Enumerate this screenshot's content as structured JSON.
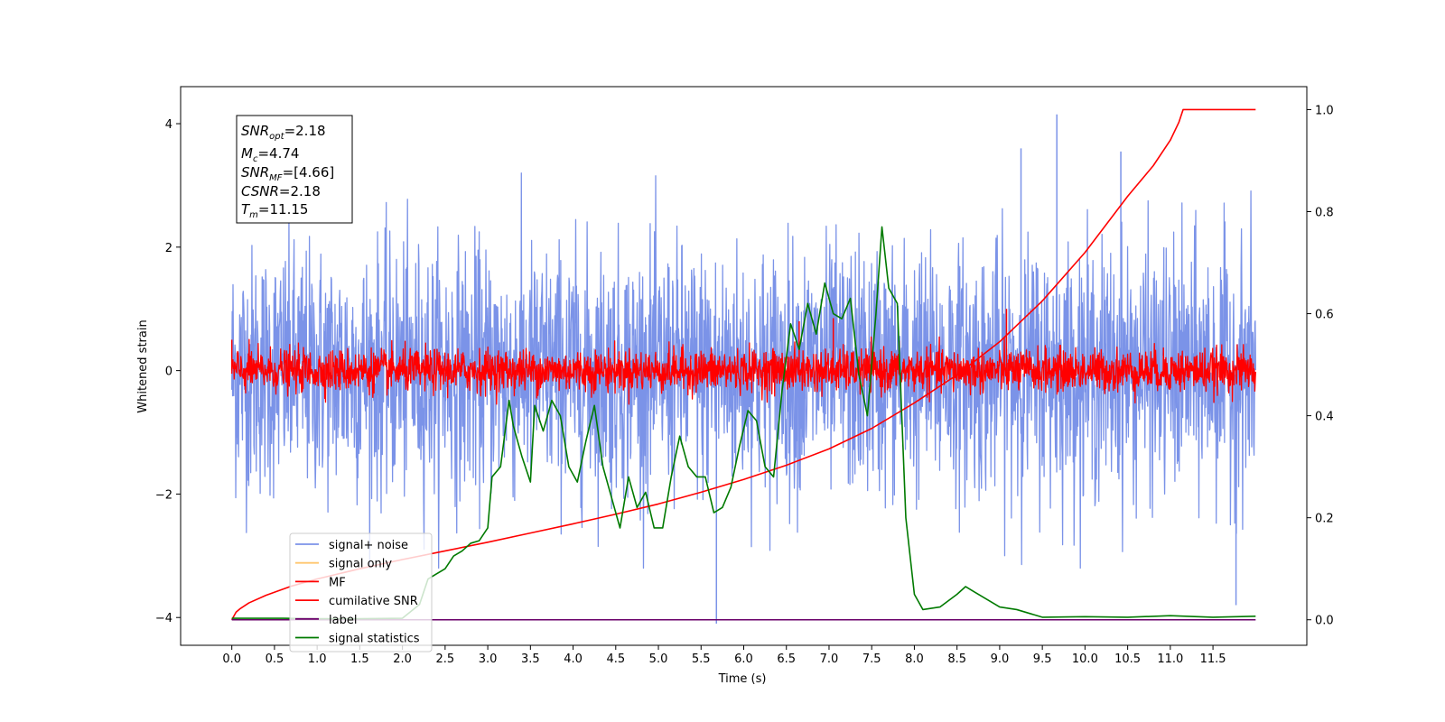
{
  "chart_data": {
    "type": "line",
    "xlabel": "Time (s)",
    "ylabel": "Whitened strain",
    "xlim": [
      -0.6,
      12.6
    ],
    "ylim_left": [
      -4.45,
      4.6
    ],
    "ylim_right": [
      -0.05,
      1.045
    ],
    "x_ticks": [
      "0.0",
      "0.5",
      "1.0",
      "1.5",
      "2.0",
      "2.5",
      "3.0",
      "3.5",
      "4.0",
      "4.5",
      "5.0",
      "5.5",
      "6.0",
      "6.5",
      "7.0",
      "7.5",
      "8.0",
      "8.5",
      "9.0",
      "9.5",
      "10.0",
      "10.5",
      "11.0",
      "11.5"
    ],
    "y_ticks_left": [
      "4",
      "2",
      "0",
      "−2",
      "−4"
    ],
    "y_ticks_right": [
      "1.0",
      "0.8",
      "0.6",
      "0.4",
      "0.2",
      "0.0"
    ],
    "annotation": {
      "snr_opt": "=2.18",
      "mc": "=4.74",
      "snr_mf": "=[4.66]",
      "csnr": "=2.18",
      "tm": "=11.15"
    },
    "legend": {
      "location": "lower-left",
      "entries": [
        {
          "label": "signal+ noise",
          "color": "#7b93e8"
        },
        {
          "label": "signal only",
          "color": "#ffc66e"
        },
        {
          "label": "MF",
          "color": "#ff0000"
        },
        {
          "label": "cumilative SNR",
          "color": "#ff0000"
        },
        {
          "label": "label",
          "color": "#6a006a"
        },
        {
          "label": "signal statistics",
          "color": "#007a00"
        }
      ]
    },
    "series": [
      {
        "name": "signal+ noise",
        "axis": "left",
        "color": "#7b93e8",
        "x_range": [
          0.0,
          12.0
        ],
        "description": "whitened noise, roughly ±2.5 amplitude with spikes to +4.2 / -4.1",
        "amplitude": 1.0,
        "peaks": [
          [
            9.67,
            4.15
          ],
          [
            5.68,
            -4.1
          ],
          [
            11.77,
            -3.8
          ],
          [
            9.25,
            3.6
          ],
          [
            10.42,
            3.55
          ]
        ]
      },
      {
        "name": "MF",
        "axis": "left",
        "color": "#ff0000",
        "x_range": [
          0.0,
          12.0
        ],
        "description": "matched filter output, roughly ±0.35 band with peaks up to ~0.9",
        "amplitude": 0.17,
        "peaks": [
          [
            0.0,
            0.5
          ],
          [
            9.08,
            1.0
          ],
          [
            6.65,
            0.8
          ],
          [
            7.05,
            0.85
          ]
        ]
      },
      {
        "name": "cumilative SNR",
        "axis": "right",
        "color": "#ff0000",
        "x": [
          0.0,
          0.05,
          0.1,
          0.2,
          0.4,
          0.7,
          1.0,
          1.5,
          2.0,
          2.5,
          3.0,
          3.5,
          4.0,
          4.5,
          5.0,
          5.5,
          6.0,
          6.5,
          7.0,
          7.5,
          8.0,
          8.5,
          9.0,
          9.5,
          10.0,
          10.5,
          10.8,
          11.0,
          11.1,
          11.15,
          12.0
        ],
        "values": [
          0.0,
          0.015,
          0.022,
          0.033,
          0.048,
          0.066,
          0.08,
          0.1,
          0.118,
          0.135,
          0.152,
          0.17,
          0.188,
          0.207,
          0.227,
          0.25,
          0.275,
          0.303,
          0.335,
          0.375,
          0.425,
          0.48,
          0.545,
          0.625,
          0.72,
          0.83,
          0.89,
          0.94,
          0.975,
          1.0,
          1.0
        ]
      },
      {
        "name": "label",
        "axis": "right",
        "color": "#6a006a",
        "x": [
          0.0,
          12.0
        ],
        "values": [
          0.0,
          0.0
        ]
      },
      {
        "name": "signal statistics",
        "axis": "right",
        "color": "#007a00",
        "x": [
          0.0,
          0.3,
          0.6,
          1.0,
          1.5,
          2.0,
          2.2,
          2.3,
          2.4,
          2.5,
          2.6,
          2.7,
          2.8,
          2.9,
          3.0,
          3.05,
          3.15,
          3.25,
          3.3,
          3.4,
          3.5,
          3.55,
          3.65,
          3.75,
          3.85,
          3.95,
          4.05,
          4.15,
          4.25,
          4.35,
          4.45,
          4.55,
          4.65,
          4.75,
          4.85,
          4.95,
          5.05,
          5.15,
          5.25,
          5.35,
          5.45,
          5.55,
          5.65,
          5.75,
          5.85,
          5.95,
          6.05,
          6.15,
          6.25,
          6.35,
          6.45,
          6.55,
          6.65,
          6.75,
          6.85,
          6.95,
          7.05,
          7.15,
          7.25,
          7.35,
          7.45,
          7.55,
          7.62,
          7.7,
          7.8,
          7.9,
          8.0,
          8.1,
          8.3,
          8.5,
          8.6,
          8.7,
          8.8,
          9.0,
          9.2,
          9.5,
          10.0,
          10.5,
          11.0,
          11.5,
          12.0
        ],
        "values": [
          0.003,
          0.003,
          0.003,
          0.002,
          0.002,
          0.003,
          0.03,
          0.08,
          0.09,
          0.1,
          0.125,
          0.135,
          0.15,
          0.155,
          0.18,
          0.28,
          0.3,
          0.43,
          0.38,
          0.32,
          0.27,
          0.42,
          0.37,
          0.43,
          0.4,
          0.3,
          0.27,
          0.35,
          0.42,
          0.3,
          0.24,
          0.18,
          0.28,
          0.22,
          0.25,
          0.18,
          0.18,
          0.28,
          0.36,
          0.3,
          0.28,
          0.28,
          0.21,
          0.22,
          0.26,
          0.34,
          0.41,
          0.39,
          0.3,
          0.28,
          0.45,
          0.58,
          0.53,
          0.62,
          0.56,
          0.66,
          0.6,
          0.59,
          0.63,
          0.48,
          0.4,
          0.6,
          0.77,
          0.65,
          0.62,
          0.2,
          0.05,
          0.02,
          0.025,
          0.05,
          0.065,
          0.055,
          0.045,
          0.025,
          0.02,
          0.005,
          0.006,
          0.005,
          0.008,
          0.005,
          0.007
        ]
      }
    ]
  }
}
